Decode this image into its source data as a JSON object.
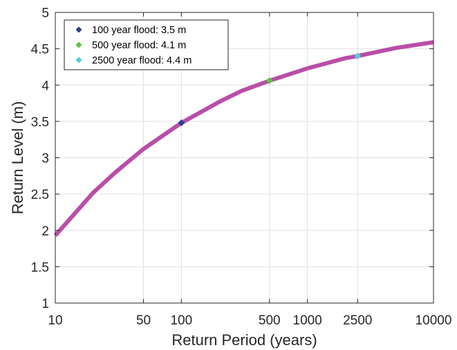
{
  "chart_data": {
    "type": "line",
    "xscale": "log",
    "xlim": [
      10,
      10000
    ],
    "ylim": [
      1,
      5
    ],
    "xticks": [
      10,
      50,
      100,
      500,
      1000,
      2500,
      10000
    ],
    "xtick_labels": [
      "10",
      "50",
      "100",
      "500",
      "1000",
      "2500",
      "10000"
    ],
    "yticks": [
      1,
      1.5,
      2,
      2.5,
      3,
      3.5,
      4,
      4.5,
      5
    ],
    "ytick_labels": [
      "1",
      "1.5",
      "2",
      "2.5",
      "3",
      "3.5",
      "4",
      "4.5",
      "5"
    ],
    "xlabel": "Return Period (years)",
    "ylabel": "Return Level (m)",
    "grid": true,
    "legend_position": "top-left",
    "series": [
      {
        "type": "line",
        "color": "#b94ea8",
        "x": [
          10,
          20,
          30,
          50,
          100,
          200,
          300,
          500,
          1000,
          2000,
          2500,
          5000,
          10000
        ],
        "y": [
          1.93,
          2.52,
          2.8,
          3.12,
          3.48,
          3.77,
          3.92,
          4.06,
          4.23,
          4.37,
          4.4,
          4.51,
          4.59
        ]
      },
      {
        "type": "scatter",
        "name": "100 year flood: 3.5 m",
        "marker": "diamond",
        "color": "#2c3e8f",
        "x": [
          100
        ],
        "y": [
          3.48
        ]
      },
      {
        "type": "scatter",
        "name": "500 year flood: 4.1 m",
        "marker": "diamond",
        "color": "#5cc142",
        "x": [
          500
        ],
        "y": [
          4.06
        ]
      },
      {
        "type": "scatter",
        "name": "2500 year flood: 4.4 m",
        "marker": "diamond",
        "color": "#5bc8db",
        "x": [
          2500
        ],
        "y": [
          4.4
        ]
      }
    ]
  }
}
